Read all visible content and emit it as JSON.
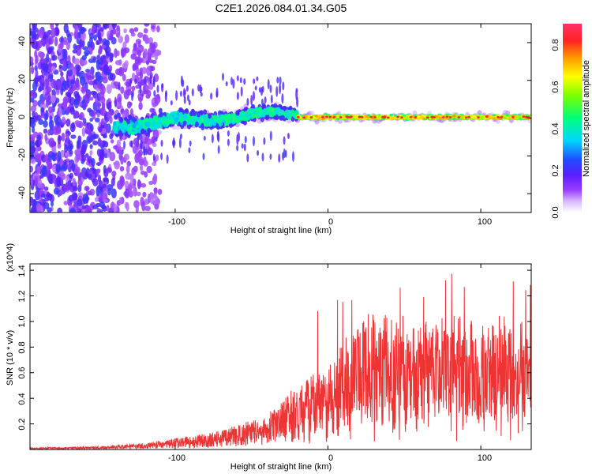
{
  "title": "C2E1.2026.084.01.34.G05",
  "chart_data": [
    {
      "type": "heatmap",
      "title": "",
      "xlabel": "Height of straight line (km)",
      "ylabel": "Frequency (Hz)",
      "xlim": [
        -195,
        133
      ],
      "ylim": [
        -50,
        50
      ],
      "xticks": [
        "-100",
        "0",
        "100"
      ],
      "yticks": [
        "40",
        "20",
        "0",
        "-20",
        "-40"
      ],
      "colorbar": {
        "label": "Normalized spectral amplitude",
        "range": [
          0.0,
          0.9
        ],
        "ticks": [
          "0.0",
          "0.2",
          "0.4",
          "0.6",
          "0.8"
        ]
      },
      "description_trend": [
        {
          "x_range": [
            -195,
            -140
          ],
          "frequency_spread_hz": 50,
          "amplitude": 0.2
        },
        {
          "x_range": [
            -140,
            -20
          ],
          "frequency_center_hz": [
            -5,
            3
          ],
          "frequency_spread_hz": 10,
          "amplitude": 0.45
        },
        {
          "x_range": [
            -20,
            133
          ],
          "frequency_center_hz": 0,
          "frequency_spread_hz": 3,
          "amplitude": 0.8
        }
      ]
    },
    {
      "type": "line",
      "title": "",
      "xlabel": "Height of straight line (km)",
      "ylabel": "SNR (10 * v/v)",
      "scale_note": "(x10^4)",
      "xlim": [
        -195,
        133
      ],
      "ylim": [
        0,
        1.45
      ],
      "xticks": [
        "-100",
        "0",
        "100"
      ],
      "yticks": [
        "0.2",
        "0.4",
        "0.6",
        "0.8",
        "1.0",
        "1.2",
        "1.4"
      ],
      "series_color": "#ee3333",
      "envelope": {
        "x": [
          -195,
          -150,
          -120,
          -100,
          -80,
          -60,
          -40,
          -30,
          -20,
          -10,
          0,
          10,
          20,
          30,
          40,
          50,
          60,
          70,
          80,
          90,
          100,
          110,
          120,
          133
        ],
        "y": [
          0.01,
          0.02,
          0.04,
          0.07,
          0.1,
          0.15,
          0.22,
          0.3,
          0.42,
          0.48,
          0.52,
          0.65,
          0.85,
          0.9,
          0.88,
          0.8,
          0.78,
          0.82,
          0.85,
          0.8,
          0.78,
          0.85,
          0.8,
          0.75
        ]
      }
    }
  ]
}
